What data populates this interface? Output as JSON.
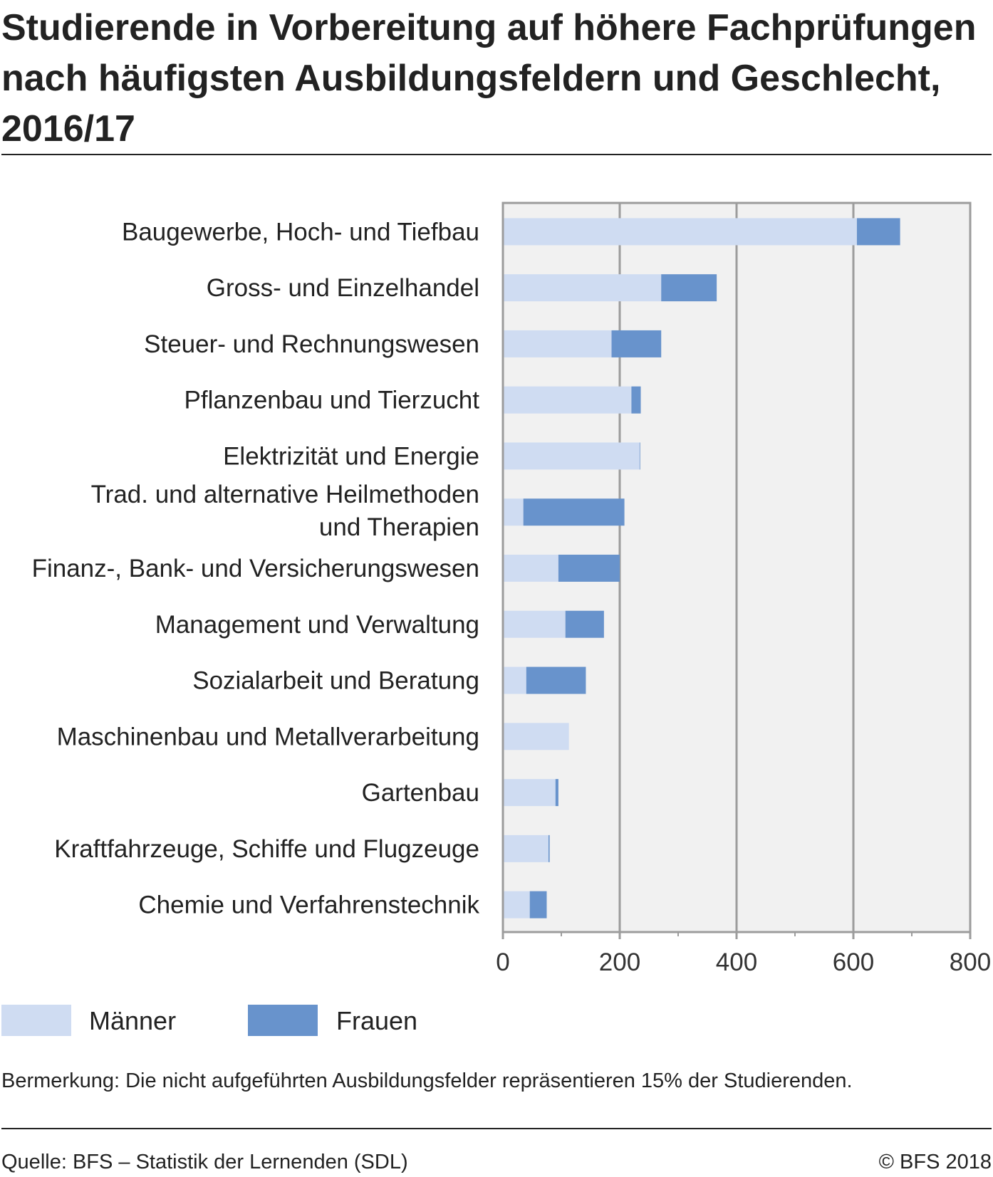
{
  "chart_data": {
    "type": "bar",
    "orientation": "horizontal",
    "stacked": true,
    "title": "Studierende in Vorbereitung auf höhere Fachprüfungen nach häufigsten Ausbildungsfeldern und Geschlecht, 2016/17",
    "categories": [
      [
        "Baugewerbe, Hoch- und Tiefbau"
      ],
      [
        "Gross- und Einzelhandel"
      ],
      [
        "Steuer- und Rechnungswesen"
      ],
      [
        "Pflanzenbau und Tierzucht"
      ],
      [
        "Elektrizität und Energie"
      ],
      [
        "Trad. und alternative Heilmethoden",
        "und Therapien"
      ],
      [
        "Finanz-, Bank- und Versicherungswesen"
      ],
      [
        "Management und Verwaltung"
      ],
      [
        "Sozialarbeit und Beratung"
      ],
      [
        "Maschinenbau und Metallverarbeitung"
      ],
      [
        "Gartenbau"
      ],
      [
        "Kraftfahrzeuge, Schiffe und Flugzeuge"
      ],
      [
        "Chemie und Verfahrenstechnik"
      ]
    ],
    "series": [
      {
        "name": "Männer",
        "color": "#cfdcf2",
        "values": [
          606,
          271,
          186,
          220,
          234,
          35,
          95,
          107,
          40,
          113,
          90,
          78,
          46
        ]
      },
      {
        "name": "Frauen",
        "color": "#6893cc",
        "values": [
          74,
          95,
          85,
          16,
          1,
          173,
          105,
          66,
          102,
          0,
          5,
          2,
          29
        ]
      }
    ],
    "xlim": [
      0,
      800
    ],
    "xticks": [
      "0",
      "200",
      "400",
      "600",
      "800"
    ],
    "grid": true,
    "legend": "bottom-left"
  },
  "note": "Bermerkung: Die nicht aufgeführten Ausbildungsfelder repräsentieren 15% der Studierenden.",
  "source": "Quelle: BFS – Statistik der Lernenden (SDL)",
  "copyright": "© BFS 2018"
}
